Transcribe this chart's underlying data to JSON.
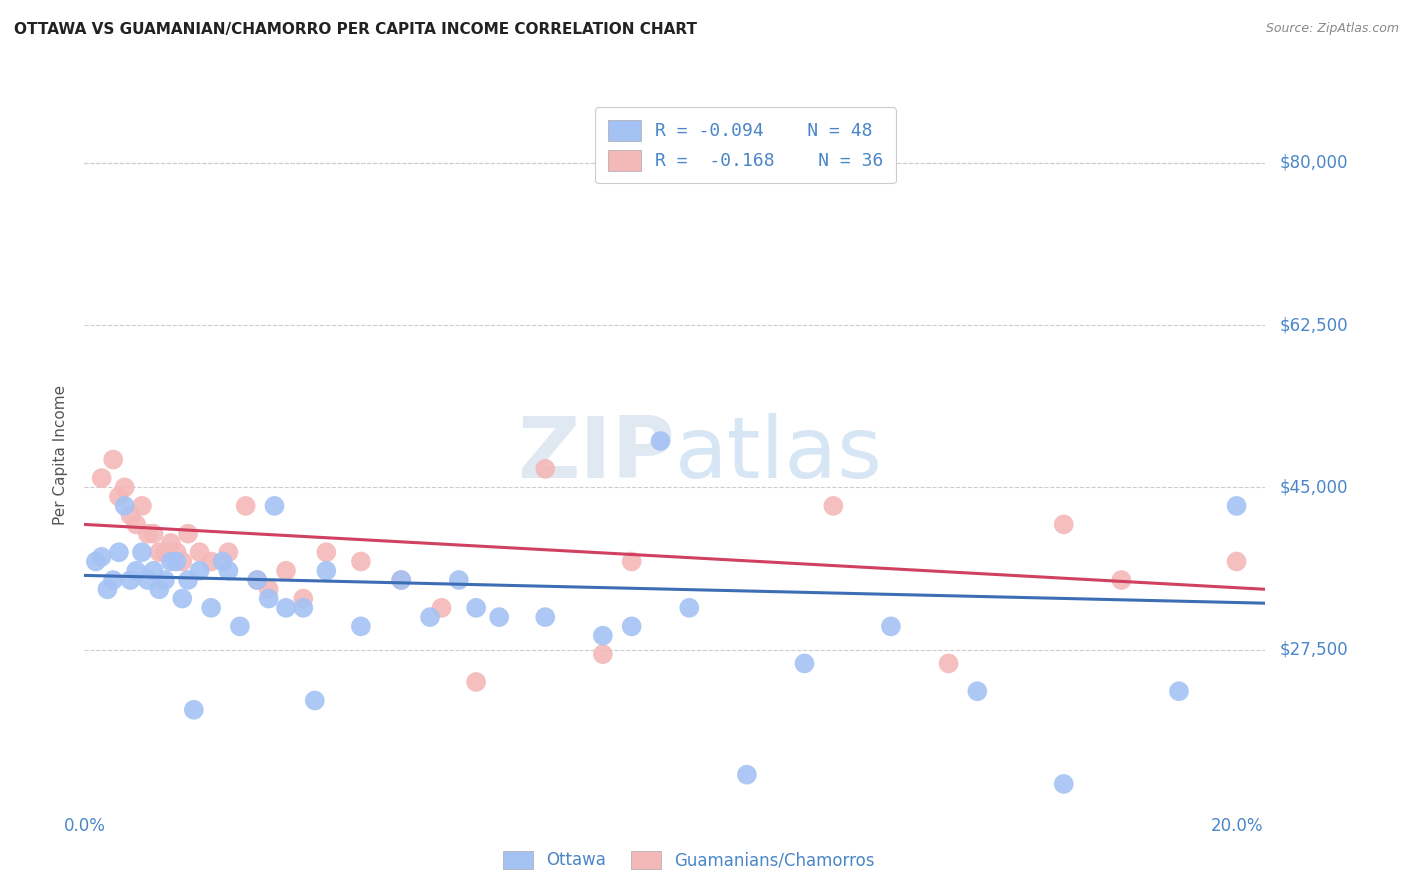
{
  "title": "OTTAWA VS GUAMANIAN/CHAMORRO PER CAPITA INCOME CORRELATION CHART",
  "source": "Source: ZipAtlas.com",
  "ylabel": "Per Capita Income",
  "xlim": [
    0.0,
    0.205
  ],
  "ylim": [
    10000,
    87000
  ],
  "xticks": [
    0.0,
    0.05,
    0.1,
    0.15,
    0.2
  ],
  "xtick_labels": [
    "0.0%",
    "",
    "",
    "",
    "20.0%"
  ],
  "ytick_values": [
    27500,
    45000,
    62500,
    80000
  ],
  "ytick_labels": [
    "$27,500",
    "$45,000",
    "$62,500",
    "$80,000"
  ],
  "legend_labels": [
    "Ottawa",
    "Guamanians/Chamorros"
  ],
  "legend_R": [
    -0.094,
    -0.168
  ],
  "legend_N": [
    48,
    36
  ],
  "blue_color": "#a4c2f4",
  "pink_color": "#f4b8b8",
  "blue_line_color": "#3d6eb5",
  "pink_line_color": "#d04060",
  "axis_color": "#4a86c8",
  "title_color": "#222222",
  "grid_color": "#cccccc",
  "blue_scatter_x": [
    0.002,
    0.003,
    0.004,
    0.005,
    0.006,
    0.007,
    0.008,
    0.009,
    0.01,
    0.011,
    0.012,
    0.013,
    0.014,
    0.015,
    0.016,
    0.017,
    0.018,
    0.019,
    0.02,
    0.022,
    0.024,
    0.025,
    0.027,
    0.03,
    0.032,
    0.033,
    0.035,
    0.038,
    0.04,
    0.042,
    0.048,
    0.055,
    0.06,
    0.065,
    0.068,
    0.072,
    0.08,
    0.09,
    0.095,
    0.1,
    0.105,
    0.115,
    0.125,
    0.14,
    0.155,
    0.17,
    0.19,
    0.2
  ],
  "blue_scatter_y": [
    37000,
    37500,
    34000,
    35000,
    38000,
    43000,
    35000,
    36000,
    38000,
    35000,
    36000,
    34000,
    35000,
    37000,
    37000,
    33000,
    35000,
    21000,
    36000,
    32000,
    37000,
    36000,
    30000,
    35000,
    33000,
    43000,
    32000,
    32000,
    22000,
    36000,
    30000,
    35000,
    31000,
    35000,
    32000,
    31000,
    31000,
    29000,
    30000,
    50000,
    32000,
    14000,
    26000,
    30000,
    23000,
    13000,
    23000,
    43000
  ],
  "pink_scatter_x": [
    0.003,
    0.005,
    0.006,
    0.007,
    0.008,
    0.009,
    0.01,
    0.011,
    0.012,
    0.013,
    0.014,
    0.015,
    0.016,
    0.017,
    0.018,
    0.02,
    0.022,
    0.025,
    0.028,
    0.03,
    0.032,
    0.035,
    0.038,
    0.042,
    0.048,
    0.055,
    0.062,
    0.068,
    0.08,
    0.09,
    0.095,
    0.13,
    0.15,
    0.17,
    0.18,
    0.2
  ],
  "pink_scatter_y": [
    46000,
    48000,
    44000,
    45000,
    42000,
    41000,
    43000,
    40000,
    40000,
    38000,
    38000,
    39000,
    38000,
    37000,
    40000,
    38000,
    37000,
    38000,
    43000,
    35000,
    34000,
    36000,
    33000,
    38000,
    37000,
    35000,
    32000,
    24000,
    47000,
    27000,
    37000,
    43000,
    26000,
    41000,
    35000,
    37000
  ],
  "blue_trend_x": [
    0.0,
    0.205
  ],
  "blue_trend_y": [
    35500,
    32500
  ],
  "pink_trend_x": [
    0.0,
    0.205
  ],
  "pink_trend_y": [
    41000,
    34000
  ]
}
